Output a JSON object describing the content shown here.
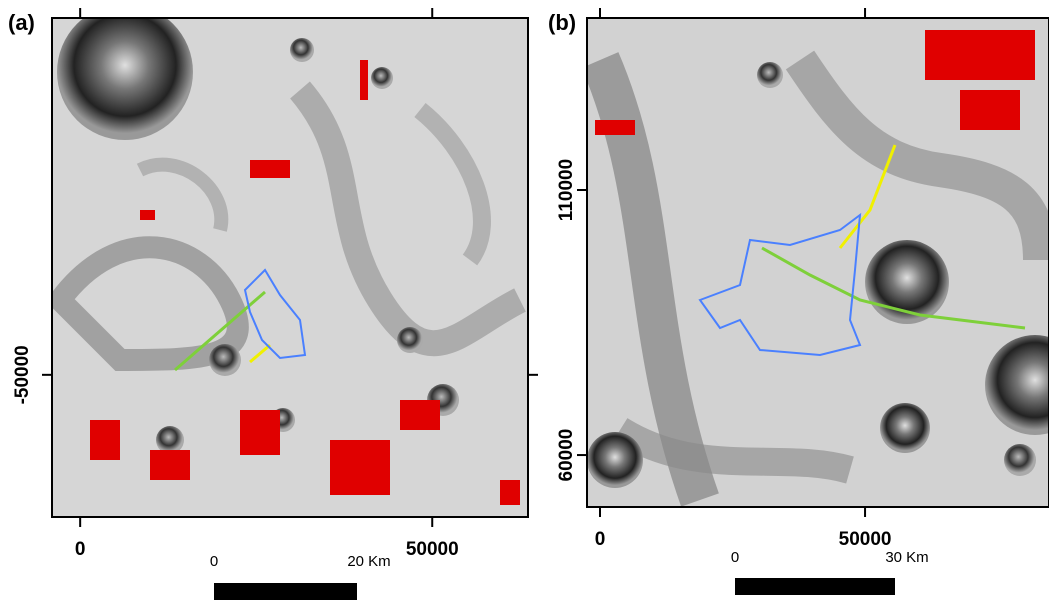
{
  "panels": [
    {
      "label": "(a)",
      "xlim": [
        -4000,
        63600
      ],
      "ylim": [
        -70200,
        700
      ],
      "xticks": [
        0,
        50000
      ],
      "yticks": [
        -50000
      ],
      "scalebar": {
        "start": "0",
        "end": "20 Km"
      }
    },
    {
      "label": "(b)",
      "xlim": [
        -2450,
        84700
      ],
      "ylim": [
        50200,
        142450
      ],
      "xticks": [
        0,
        50000
      ],
      "yticks": [
        110000,
        60000
      ],
      "scalebar": {
        "start": "0",
        "end": "30 Km"
      }
    }
  ]
}
